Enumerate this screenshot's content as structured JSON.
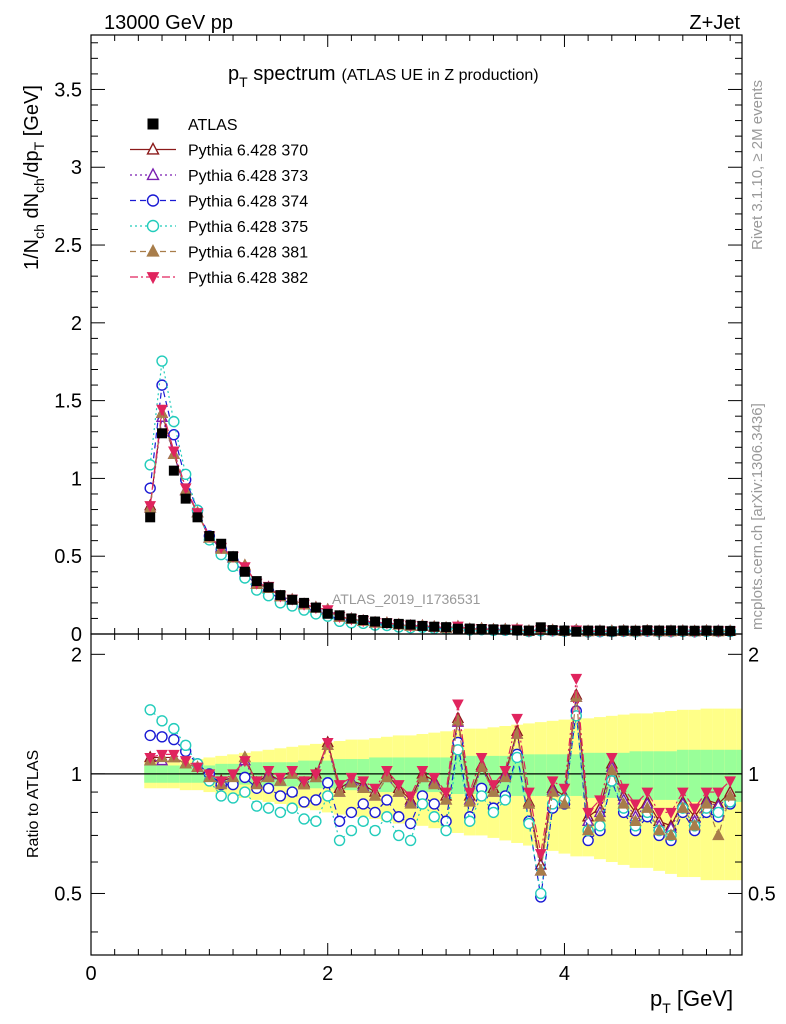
{
  "header": {
    "energy_label": "13000 GeV pp",
    "process_label": "Z+Jet",
    "title_main": "p",
    "title_sub": "T",
    "title_word": " spectrum",
    "title_detail": "(ATLAS UE in Z production)",
    "analysis_id": "ATLAS_2019_I1736531"
  },
  "side_labels": {
    "rivet": "Rivet 3.1.10, ≥ 2M events",
    "mcplots": "mcplots.cern.ch [arXiv:1306.3436]"
  },
  "axes": {
    "top_ylabel_parts": [
      "1/N",
      "ch",
      " dN",
      "ch",
      "/dp",
      "T",
      " [GeV]"
    ],
    "bottom_ylabel": "Ratio to ATLAS",
    "xlabel_main": "p",
    "xlabel_sub": "T",
    "xlabel_unit": " [GeV]",
    "top_yticks": [
      "0",
      "0.5",
      "1",
      "1.5",
      "2",
      "2.5",
      "3",
      "3.5"
    ],
    "bottom_yticks": [
      "0.5",
      "1",
      "2"
    ],
    "xticks": [
      "0",
      "2",
      "4"
    ]
  },
  "colors": {
    "atlas": "#000000",
    "p370": "#8b1a1a",
    "p373": "#7a1fb0",
    "p374": "#1a1ad4",
    "p375": "#22ccbb",
    "p381": "#a87d4a",
    "p382": "#e0245e",
    "band_inner": "#99ff99",
    "band_outer": "#ffff88"
  },
  "chart_data": {
    "type": "scatter",
    "title": "pT spectrum (ATLAS UE in Z production)",
    "xlabel": "pT [GeV]",
    "ylabel": "1/Nch dNch/dpT [GeV]",
    "ratio_ylabel": "Ratio to ATLAS",
    "xlim": [
      0,
      5.5
    ],
    "ylim": [
      0,
      3.85
    ],
    "ratio_ylim": [
      0.35,
      2.25
    ],
    "ratio_scale": "log",
    "x": [
      0.5,
      0.6,
      0.7,
      0.8,
      0.9,
      1.0,
      1.1,
      1.2,
      1.3,
      1.4,
      1.5,
      1.6,
      1.7,
      1.8,
      1.9,
      2.0,
      2.1,
      2.2,
      2.3,
      2.4,
      2.5,
      2.6,
      2.7,
      2.8,
      2.9,
      3.0,
      3.1,
      3.2,
      3.3,
      3.4,
      3.5,
      3.6,
      3.7,
      3.8,
      3.9,
      4.0,
      4.1,
      4.2,
      4.3,
      4.4,
      4.5,
      4.6,
      4.7,
      4.8,
      4.9,
      5.0,
      5.1,
      5.2,
      5.3,
      5.4,
      5.5
    ],
    "atlas": [
      0.75,
      1.29,
      1.05,
      0.87,
      0.75,
      0.63,
      0.58,
      0.5,
      0.4,
      0.34,
      0.3,
      0.25,
      0.22,
      0.2,
      0.17,
      0.13,
      0.12,
      0.1,
      0.09,
      0.08,
      0.07,
      0.065,
      0.06,
      0.052,
      0.047,
      0.044,
      0.034,
      0.035,
      0.032,
      0.03,
      0.028,
      0.023,
      0.022,
      0.043,
      0.025,
      0.022,
      0.015,
      0.022,
      0.022,
      0.017,
      0.022,
      0.021,
      0.024,
      0.022,
      0.023,
      0.022,
      0.021,
      0.022,
      0.021,
      0.02,
      0.019
    ],
    "band_inner": [
      0.05,
      0.05,
      0.05,
      0.05,
      0.05,
      0.05,
      0.06,
      0.06,
      0.06,
      0.07,
      0.07,
      0.07,
      0.07,
      0.08,
      0.08,
      0.08,
      0.09,
      0.09,
      0.09,
      0.1,
      0.1,
      0.1,
      0.1,
      0.1,
      0.1,
      0.1,
      0.11,
      0.11,
      0.11,
      0.11,
      0.11,
      0.12,
      0.12,
      0.12,
      0.12,
      0.12,
      0.12,
      0.13,
      0.13,
      0.13,
      0.13,
      0.14,
      0.14,
      0.14,
      0.14,
      0.15,
      0.15,
      0.15,
      0.15,
      0.15,
      0.15
    ],
    "band_outer": [
      0.08,
      0.08,
      0.08,
      0.09,
      0.09,
      0.1,
      0.11,
      0.12,
      0.13,
      0.14,
      0.15,
      0.16,
      0.17,
      0.18,
      0.19,
      0.2,
      0.21,
      0.22,
      0.22,
      0.23,
      0.24,
      0.25,
      0.25,
      0.26,
      0.27,
      0.28,
      0.29,
      0.3,
      0.3,
      0.31,
      0.32,
      0.33,
      0.34,
      0.35,
      0.36,
      0.37,
      0.38,
      0.38,
      0.39,
      0.4,
      0.41,
      0.42,
      0.42,
      0.43,
      0.44,
      0.45,
      0.45,
      0.46,
      0.46,
      0.46,
      0.46
    ],
    "series": [
      {
        "name": "Pythia 6.428 370",
        "marker": "triangle-open",
        "line": "solid",
        "color": "#8b1a1a",
        "ratio": [
          1.1,
          1.1,
          1.1,
          1.06,
          1.04,
          0.98,
          0.96,
          0.98,
          1.1,
          0.95,
          1.0,
          0.96,
          1.0,
          0.95,
          1.0,
          1.2,
          0.92,
          0.96,
          0.94,
          0.9,
          1.0,
          0.92,
          0.86,
          1.0,
          0.96,
          0.88,
          1.38,
          0.88,
          1.05,
          0.92,
          1.0,
          1.28,
          0.85,
          0.59,
          0.92,
          0.88,
          1.58,
          0.78,
          0.82,
          1.06,
          0.88,
          0.8,
          0.85,
          0.76,
          0.74,
          0.85,
          0.78,
          0.86,
          0.84,
          0.9,
          0.92
        ]
      },
      {
        "name": "Pythia 6.428 373",
        "marker": "triangle-open",
        "line": "dotted",
        "color": "#7a1fb0",
        "ratio": [
          1.08,
          1.08,
          1.1,
          1.06,
          1.04,
          0.98,
          0.95,
          0.98,
          1.08,
          0.94,
          0.99,
          0.96,
          1.0,
          0.94,
          0.98,
          1.18,
          0.9,
          0.96,
          0.93,
          0.88,
          0.98,
          0.9,
          0.85,
          0.98,
          0.95,
          0.86,
          1.35,
          0.86,
          1.04,
          0.9,
          0.99,
          1.26,
          0.84,
          0.57,
          0.91,
          0.86,
          1.56,
          0.76,
          0.8,
          1.04,
          0.86,
          0.78,
          0.84,
          0.74,
          0.73,
          0.84,
          0.76,
          0.85,
          0.83,
          0.88,
          0.92
        ]
      },
      {
        "name": "Pythia 6.428 374",
        "marker": "circle-open",
        "line": "dashed",
        "color": "#1a1ad4",
        "ratio": [
          1.25,
          1.24,
          1.22,
          1.14,
          1.06,
          1.0,
          0.94,
          0.94,
          0.98,
          0.92,
          0.92,
          0.88,
          0.9,
          0.85,
          0.86,
          0.95,
          0.76,
          0.8,
          0.84,
          0.8,
          0.86,
          0.78,
          0.75,
          0.88,
          0.84,
          0.76,
          1.2,
          0.78,
          0.92,
          0.82,
          0.88,
          1.12,
          0.76,
          0.49,
          0.82,
          0.84,
          1.44,
          0.68,
          0.72,
          0.96,
          0.8,
          0.72,
          0.78,
          0.7,
          0.68,
          0.8,
          0.72,
          0.8,
          0.78,
          0.84,
          0.88
        ]
      },
      {
        "name": "Pythia 6.428 375",
        "marker": "circle-open",
        "line": "dotted",
        "color": "#22ccbb",
        "ratio": [
          1.45,
          1.36,
          1.3,
          1.18,
          1.06,
          0.96,
          0.88,
          0.87,
          0.9,
          0.83,
          0.82,
          0.8,
          0.82,
          0.77,
          0.76,
          0.88,
          0.68,
          0.72,
          0.76,
          0.72,
          0.78,
          0.7,
          0.68,
          0.84,
          0.78,
          0.72,
          1.15,
          0.76,
          0.88,
          0.8,
          0.86,
          1.1,
          0.75,
          0.5,
          0.84,
          0.86,
          1.4,
          0.72,
          0.74,
          0.96,
          0.82,
          0.74,
          0.8,
          0.72,
          0.7,
          0.82,
          0.74,
          0.82,
          0.8,
          0.85,
          0.88
        ]
      },
      {
        "name": "Pythia 6.428 381",
        "marker": "triangle-filled",
        "line": "dashed",
        "color": "#a87d4a",
        "ratio": [
          1.08,
          1.1,
          1.1,
          1.06,
          1.04,
          0.98,
          0.94,
          0.98,
          1.1,
          0.94,
          0.98,
          0.96,
          1.0,
          0.94,
          0.98,
          1.18,
          0.9,
          0.95,
          0.92,
          0.88,
          0.98,
          0.9,
          0.84,
          0.98,
          0.94,
          0.86,
          1.36,
          0.85,
          1.04,
          0.9,
          0.98,
          1.26,
          0.84,
          0.57,
          0.9,
          0.84,
          1.56,
          0.72,
          0.78,
          1.02,
          0.84,
          0.76,
          0.82,
          0.72,
          0.7,
          0.82,
          0.74,
          0.84,
          0.7,
          0.88,
          0.9
        ]
      },
      {
        "name": "Pythia 6.428 382",
        "marker": "triangle-down-filled",
        "line": "dashdot",
        "color": "#e0245e",
        "ratio": [
          1.1,
          1.12,
          1.12,
          1.08,
          1.04,
          1.0,
          0.96,
          1.0,
          1.08,
          0.96,
          1.02,
          0.98,
          1.02,
          0.96,
          1.0,
          1.2,
          0.94,
          0.98,
          0.96,
          0.92,
          1.02,
          0.94,
          0.88,
          1.02,
          0.98,
          0.9,
          1.5,
          0.9,
          1.1,
          0.94,
          1.02,
          1.38,
          0.9,
          0.63,
          0.96,
          0.92,
          1.74,
          0.8,
          0.86,
          1.1,
          0.92,
          0.84,
          0.9,
          0.8,
          0.8,
          0.9,
          0.82,
          0.9,
          0.9,
          0.96,
          0.98
        ]
      }
    ],
    "legend": [
      "ATLAS",
      "Pythia 6.428 370",
      "Pythia 6.428 373",
      "Pythia 6.428 374",
      "Pythia 6.428 375",
      "Pythia 6.428 381",
      "Pythia 6.428 382"
    ],
    "legend_position": "top-left"
  }
}
